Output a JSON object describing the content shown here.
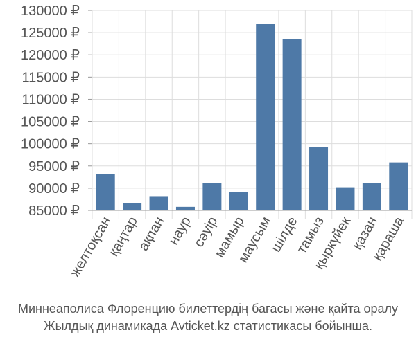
{
  "chart_data": {
    "type": "bar",
    "categories": [
      "желтоқсан",
      "қаңтар",
      "ақпан",
      "наур",
      "сәуір",
      "мамыр",
      "маусым",
      "шілде",
      "тамыз",
      "қыркүйек",
      "қазан",
      "қараша"
    ],
    "values": [
      93100,
      86600,
      88200,
      85800,
      91100,
      89200,
      126900,
      123500,
      99200,
      90200,
      91200,
      95800
    ],
    "ylim": [
      85000,
      130000
    ],
    "yticks": [
      "85000 ₽",
      "90000 ₽",
      "95000 ₽",
      "100000 ₽",
      "105000 ₽",
      "110000 ₽",
      "115000 ₽",
      "120000 ₽",
      "125000 ₽",
      "130000 ₽"
    ],
    "ytick_values": [
      85000,
      90000,
      95000,
      100000,
      105000,
      110000,
      115000,
      120000,
      125000,
      130000
    ],
    "grid": true,
    "bar_color": "#4e79a7"
  },
  "caption": {
    "line1": "Миннеаполиса Флоренцию билеттердің бағасы және қайта оралу",
    "line2": "Жылдық динамикада Avticket.kz статистикасы бойынша."
  }
}
